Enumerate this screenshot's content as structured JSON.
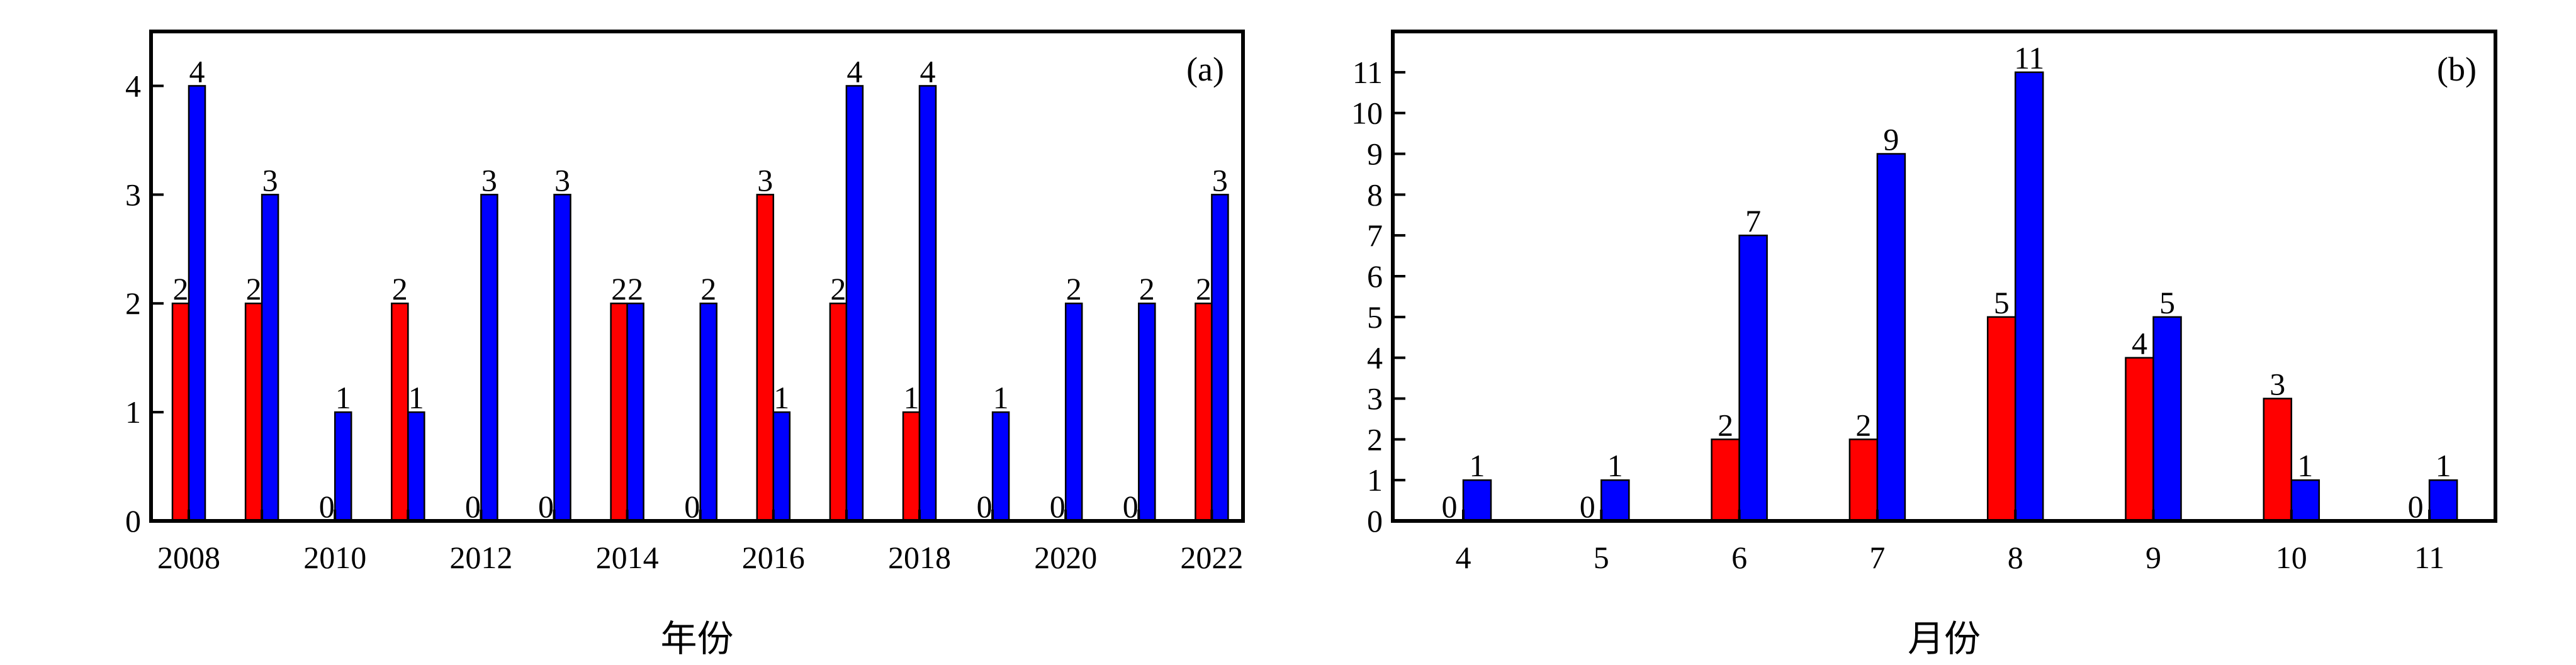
{
  "chart_data": [
    {
      "type": "bar",
      "panel_label": "(a)",
      "xlabel": "年份",
      "ylabel": "",
      "categories": [
        "2008",
        "2009",
        "2010",
        "2011",
        "2012",
        "2013",
        "2014",
        "2015",
        "2016",
        "2017",
        "2018",
        "2019",
        "2020",
        "2021",
        "2022"
      ],
      "x_tick_labels": [
        "2008",
        "2010",
        "2012",
        "2014",
        "2016",
        "2018",
        "2020",
        "2022"
      ],
      "y_ticks": [
        "0",
        "1",
        "2",
        "3",
        "4"
      ],
      "ylim": [
        0,
        4.5
      ],
      "series": [
        {
          "color": "#ff0000",
          "values": [
            2,
            2,
            0,
            2,
            0,
            0,
            2,
            0,
            3,
            2,
            1,
            0,
            0,
            0,
            2
          ]
        },
        {
          "color": "#0000ff",
          "values": [
            4,
            3,
            1,
            1,
            3,
            3,
            2,
            2,
            1,
            4,
            4,
            1,
            2,
            2,
            3
          ]
        }
      ],
      "grid": false,
      "legend": "none"
    },
    {
      "type": "bar",
      "panel_label": "(b)",
      "xlabel": "月份",
      "ylabel": "",
      "categories": [
        "4",
        "5",
        "6",
        "7",
        "8",
        "9",
        "10",
        "11"
      ],
      "x_tick_labels": [
        "4",
        "5",
        "6",
        "7",
        "8",
        "9",
        "10",
        "11"
      ],
      "y_ticks": [
        "0",
        "1",
        "2",
        "3",
        "4",
        "5",
        "6",
        "7",
        "8",
        "9",
        "10",
        "11"
      ],
      "ylim": [
        0,
        12
      ],
      "series": [
        {
          "color": "#ff0000",
          "values": [
            0,
            0,
            2,
            2,
            5,
            4,
            3,
            0
          ]
        },
        {
          "color": "#0000ff",
          "values": [
            1,
            1,
            7,
            9,
            11,
            5,
            1,
            1
          ]
        }
      ],
      "grid": false,
      "legend": "none"
    }
  ]
}
